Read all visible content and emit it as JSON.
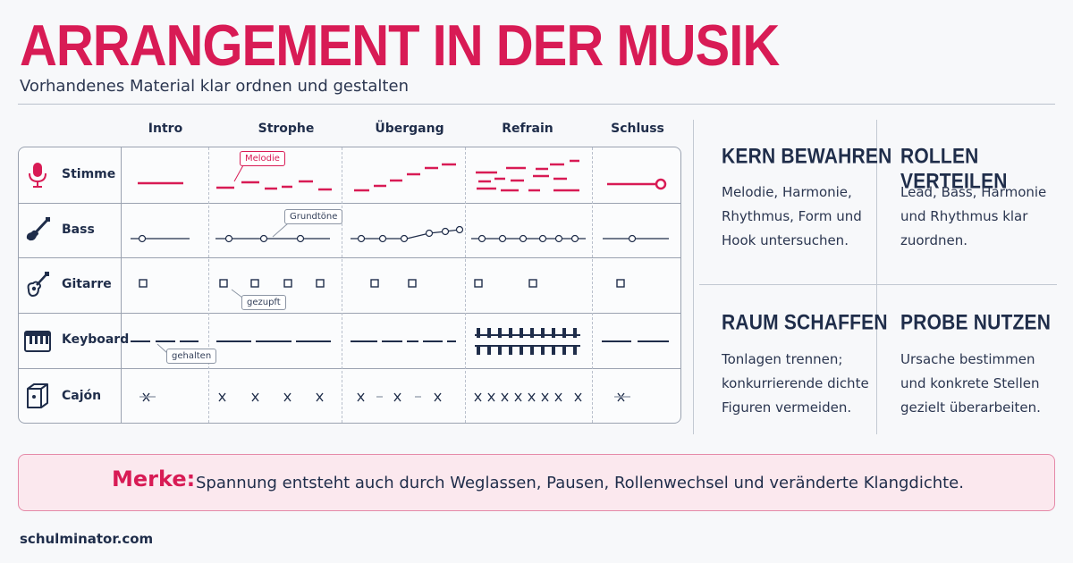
{
  "title": "ARRANGEMENT IN DER MUSIK",
  "subtitle": "Vorhandenes Material klar ordnen und gestalten",
  "columns": [
    "Intro",
    "Strophe",
    "Übergang",
    "Refrain",
    "Schluss"
  ],
  "rows": [
    "Stimme",
    "Bass",
    "Gitarre",
    "Keyboard",
    "Cajón"
  ],
  "row_icons": [
    "microphone-icon",
    "bass-guitar-icon",
    "acoustic-guitar-icon",
    "keyboard-icon",
    "cajon-icon"
  ],
  "callouts": {
    "melodie": "Melodie",
    "grundtoene": "Grundtöne",
    "gezupft": "gezupft",
    "gehalten": "gehalten"
  },
  "tips": [
    {
      "heading": "KERN BEWAHREN",
      "text": "Melodie, Harmonie, Rhythmus, Form und Hook untersuchen."
    },
    {
      "heading": "ROLLEN VERTEILEN",
      "text": "Lead, Bass, Harmonie und Rhythmus klar zuordnen."
    },
    {
      "heading": "RAUM SCHAFFEN",
      "text": "Tonlagen trennen; konkurrierende dichte Figuren vermeiden."
    },
    {
      "heading": "PROBE NUTZEN",
      "text": "Ursache bestimmen und konkrete Stellen gezielt überarbeiten."
    }
  ],
  "merke": {
    "label": "Merke:",
    "text": "Spannung entsteht auch durch Weglassen, Pausen, Rollenwechsel und veränderte Klangdichte."
  },
  "footer": "schulminator.com",
  "colors": {
    "accent": "#d81b55",
    "navy": "#1f2d4a",
    "merke_bg": "#fbe8ee"
  }
}
